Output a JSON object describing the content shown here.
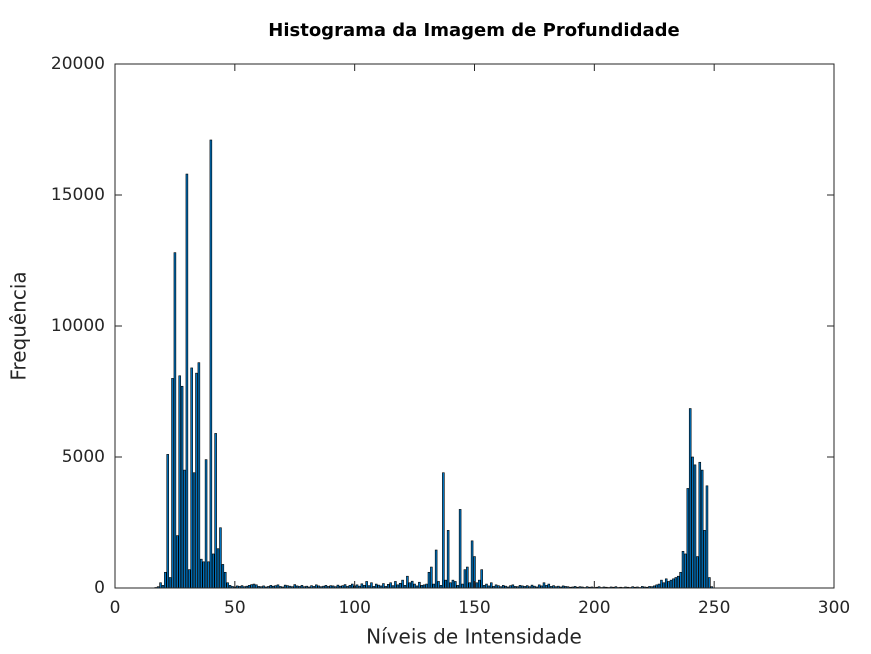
{
  "chart_data": {
    "type": "bar",
    "title": "Histograma da Imagem de Profundidade",
    "xlabel": "Níveis de Intensidade",
    "ylabel": "Frequência",
    "color": "#0072bd",
    "edgecolor": "#000000",
    "xlim": [
      0,
      300
    ],
    "xticks": [
      0,
      50,
      100,
      150,
      200,
      250,
      300
    ],
    "ylim": [
      0,
      20000
    ],
    "yticks": [
      0,
      5000,
      10000,
      15000,
      20000
    ],
    "x": [
      17,
      18,
      19,
      20,
      21,
      22,
      23,
      24,
      25,
      26,
      27,
      28,
      29,
      30,
      31,
      32,
      33,
      34,
      35,
      36,
      37,
      38,
      39,
      40,
      41,
      42,
      43,
      44,
      45,
      46,
      47,
      48,
      49,
      50,
      51,
      52,
      53,
      54,
      55,
      56,
      57,
      58,
      59,
      60,
      61,
      62,
      63,
      64,
      65,
      66,
      67,
      68,
      69,
      70,
      71,
      72,
      73,
      74,
      75,
      76,
      77,
      78,
      79,
      80,
      81,
      82,
      83,
      84,
      85,
      86,
      87,
      88,
      89,
      90,
      91,
      92,
      93,
      94,
      95,
      96,
      97,
      98,
      99,
      100,
      101,
      102,
      103,
      104,
      105,
      106,
      107,
      108,
      109,
      110,
      111,
      112,
      113,
      114,
      115,
      116,
      117,
      118,
      119,
      120,
      121,
      122,
      123,
      124,
      125,
      126,
      127,
      128,
      129,
      130,
      131,
      132,
      133,
      134,
      135,
      136,
      137,
      138,
      139,
      140,
      141,
      142,
      143,
      144,
      145,
      146,
      147,
      148,
      149,
      150,
      151,
      152,
      153,
      154,
      155,
      156,
      157,
      158,
      159,
      160,
      161,
      162,
      163,
      164,
      165,
      166,
      167,
      168,
      169,
      170,
      171,
      172,
      173,
      174,
      175,
      176,
      177,
      178,
      179,
      180,
      181,
      182,
      183,
      184,
      185,
      186,
      187,
      188,
      189,
      190,
      191,
      192,
      193,
      194,
      195,
      196,
      197,
      198,
      199,
      200,
      201,
      202,
      203,
      204,
      205,
      206,
      207,
      208,
      209,
      210,
      211,
      212,
      213,
      214,
      215,
      216,
      217,
      218,
      219,
      220,
      221,
      222,
      223,
      224,
      225,
      226,
      227,
      228,
      229,
      230,
      231,
      232,
      233,
      234,
      235,
      236,
      237,
      238,
      239,
      240,
      241,
      242,
      243,
      244,
      245,
      246,
      247,
      248,
      249
    ],
    "values": [
      20,
      50,
      200,
      100,
      600,
      5100,
      400,
      8000,
      12800,
      2000,
      8100,
      7700,
      4500,
      15800,
      700,
      8400,
      4400,
      8200,
      8600,
      1100,
      1000,
      4900,
      1000,
      17100,
      1300,
      5900,
      1500,
      2300,
      900,
      600,
      200,
      100,
      60,
      40,
      80,
      60,
      90,
      50,
      70,
      100,
      130,
      150,
      120,
      60,
      50,
      80,
      40,
      60,
      100,
      70,
      90,
      120,
      60,
      40,
      110,
      90,
      70,
      50,
      130,
      80,
      60,
      100,
      50,
      70,
      40,
      90,
      60,
      120,
      80,
      50,
      70,
      100,
      60,
      90,
      80,
      50,
      110,
      70,
      90,
      130,
      60,
      100,
      150,
      80,
      120,
      70,
      160,
      100,
      250,
      90,
      200,
      60,
      150,
      110,
      80,
      170,
      60,
      140,
      200,
      90,
      250,
      120,
      180,
      300,
      100,
      450,
      200,
      260,
      150,
      80,
      220,
      100,
      120,
      150,
      600,
      800,
      150,
      1450,
      250,
      100,
      4400,
      300,
      2200,
      200,
      300,
      250,
      100,
      3000,
      150,
      700,
      800,
      200,
      1800,
      1200,
      200,
      300,
      700,
      100,
      150,
      80,
      200,
      60,
      120,
      90,
      50,
      100,
      70,
      40,
      90,
      120,
      60,
      50,
      100,
      80,
      60,
      90,
      50,
      110,
      70,
      40,
      120,
      80,
      200,
      100,
      150,
      60,
      90,
      50,
      70,
      40,
      80,
      60,
      50,
      30,
      40,
      60,
      30,
      50,
      40,
      20,
      50,
      30,
      40,
      20,
      30,
      50,
      20,
      40,
      30,
      20,
      40,
      30,
      50,
      20,
      30,
      20,
      40,
      30,
      20,
      50,
      30,
      40,
      20,
      60,
      40,
      30,
      60,
      50,
      80,
      120,
      150,
      300,
      200,
      350,
      250,
      300,
      350,
      400,
      450,
      600,
      1400,
      1300,
      3800,
      6850,
      5000,
      4700,
      1200,
      4800,
      4500,
      2200,
      3900,
      400,
      50
    ]
  }
}
